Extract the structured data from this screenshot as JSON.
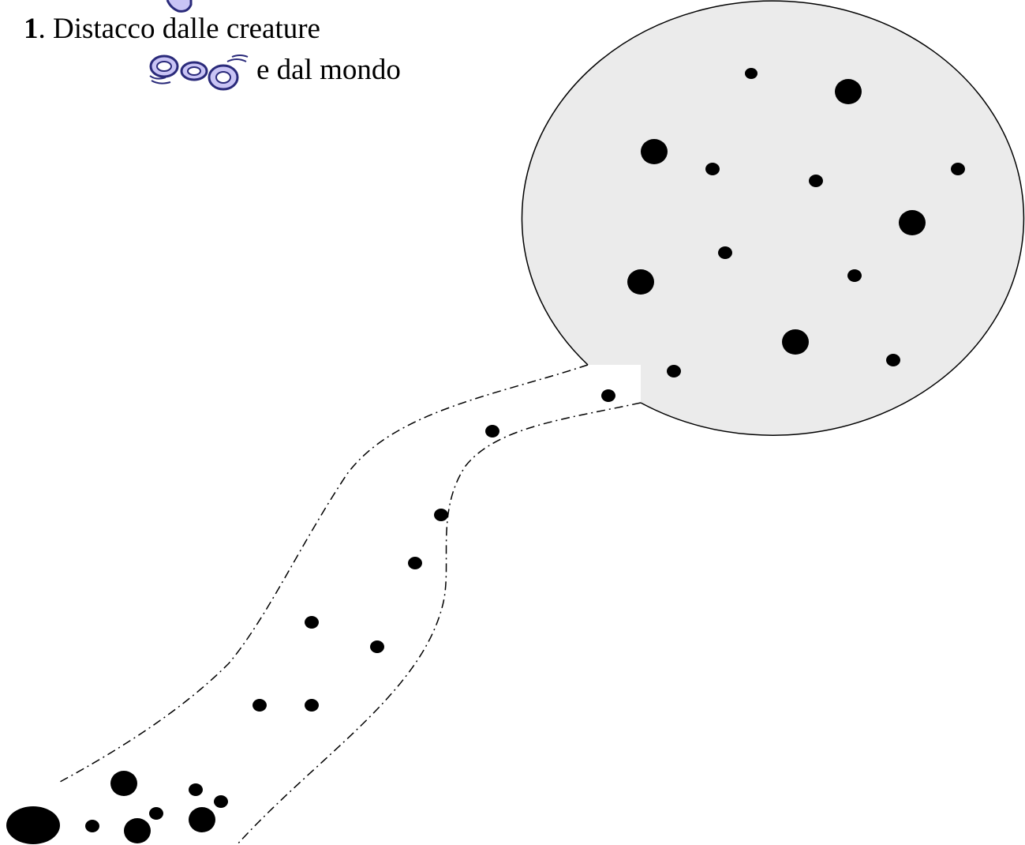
{
  "title": {
    "number": "1",
    "separator": ". ",
    "line1": "Distacco dalle creature",
    "line2": "e dal mondo"
  },
  "icons": {
    "top_icon": "chain-icon",
    "inline_icon": "chain-icon"
  },
  "colors": {
    "circle_fill": "#ebebeb",
    "chain_fill": "#c9c4f5",
    "chain_stroke": "#2a2a7a",
    "dot": "#000000",
    "path_line": "#000000"
  }
}
